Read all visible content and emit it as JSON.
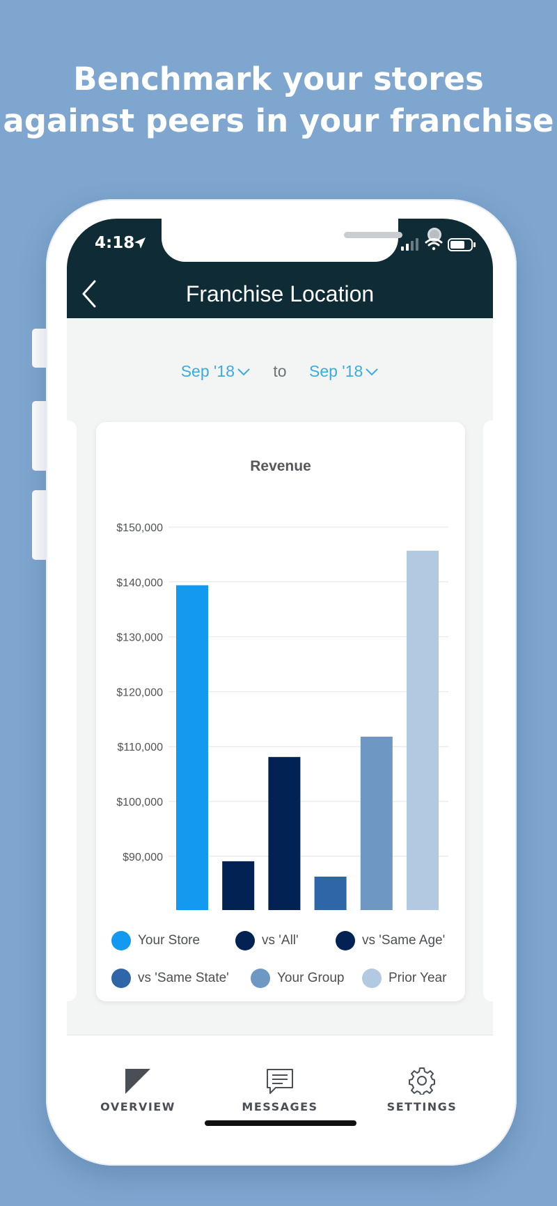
{
  "headline": {
    "line1": "Benchmark your stores",
    "line2": "against peers in your franchise"
  },
  "status_bar": {
    "time": "4:18",
    "icons": [
      "location-arrow-icon",
      "cellular-signal-icon",
      "wifi-icon",
      "battery-icon"
    ]
  },
  "nav": {
    "title": "Franchise Location",
    "back_icon": "chevron-left-icon"
  },
  "date_range": {
    "from": "Sep '18",
    "to_label": "to",
    "to": "Sep '18",
    "icon": "chevron-down-icon"
  },
  "colors": {
    "accent": "#3aabdf",
    "navbar": "#0f2b36",
    "background": "#7ea6cf"
  },
  "chart_data": {
    "type": "bar",
    "title": "Revenue",
    "xlabel": "",
    "ylabel": "",
    "ylim": [
      80000,
      150000
    ],
    "yticks": [
      90000,
      100000,
      110000,
      120000,
      130000,
      140000,
      150000
    ],
    "ytick_labels": [
      "$90,000",
      "$100,000",
      "$110,000",
      "$120,000",
      "$130,000",
      "$140,000",
      "$150,000"
    ],
    "grid": true,
    "legend_position": "bottom",
    "categories": [
      "Your Store",
      "vs 'All'",
      "vs 'Same Age'",
      "vs 'Same State'",
      "Your Group",
      "Prior Year"
    ],
    "values": [
      139400,
      89100,
      108100,
      86300,
      111800,
      145700
    ],
    "colors": [
      "#139af0",
      "#022253",
      "#022253",
      "#2f66a8",
      "#6f97c4",
      "#b2c9e1"
    ]
  },
  "legend": [
    {
      "label": "Your Store",
      "color": "#139af0"
    },
    {
      "label": "vs 'All'",
      "color": "#022253"
    },
    {
      "label": "vs 'Same Age'",
      "color": "#022253"
    },
    {
      "label": "vs 'Same State'",
      "color": "#2f66a8"
    },
    {
      "label": "Your Group",
      "color": "#6f97c4"
    },
    {
      "label": "Prior Year",
      "color": "#b2c9e1"
    }
  ],
  "tabs": [
    {
      "label": "OVERVIEW",
      "icon": "overview-triangle-icon"
    },
    {
      "label": "MESSAGES",
      "icon": "message-icon"
    },
    {
      "label": "SETTINGS",
      "icon": "gear-icon"
    }
  ]
}
